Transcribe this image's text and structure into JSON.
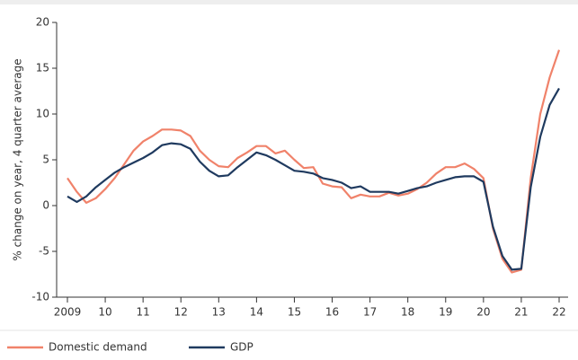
{
  "chart_data": {
    "type": "line",
    "y_label": "% change on year,  4 quarter average",
    "x": [
      2009,
      2009.25,
      2009.5,
      2009.75,
      2010,
      2010.25,
      2010.5,
      2010.75,
      2011,
      2011.25,
      2011.5,
      2011.75,
      2012,
      2012.25,
      2012.5,
      2012.75,
      2013,
      2013.25,
      2013.5,
      2013.75,
      2014,
      2014.25,
      2014.5,
      2014.75,
      2015,
      2015.25,
      2015.5,
      2015.75,
      2016,
      2016.25,
      2016.5,
      2016.75,
      2017,
      2017.25,
      2017.5,
      2017.75,
      2018,
      2018.25,
      2018.5,
      2018.75,
      2019,
      2019.25,
      2019.5,
      2019.75,
      2020,
      2020.25,
      2020.5,
      2020.75,
      2021,
      2021.25,
      2021.5,
      2021.75,
      2022
    ],
    "series": [
      {
        "name": "Domestic demand",
        "color": "#f0826a",
        "values": [
          3,
          1.5,
          0.3,
          0.8,
          1.8,
          3,
          4.5,
          6,
          7,
          7.6,
          8.3,
          8.3,
          8.2,
          7.6,
          6,
          5,
          4.3,
          4.2,
          5.2,
          5.8,
          6.5,
          6.5,
          5.7,
          6,
          5,
          4.1,
          4.2,
          2.4,
          2.1,
          2,
          0.8,
          1.2,
          1,
          1,
          1.4,
          1.1,
          1.3,
          1.8,
          2.5,
          3.5,
          4.2,
          4.2,
          4.6,
          4,
          3,
          -2.5,
          -5.8,
          -7.3,
          -7,
          3,
          10,
          14,
          17
        ]
      },
      {
        "name": "GDP",
        "color": "#1f3a5f",
        "values": [
          1,
          0.4,
          1,
          2,
          2.8,
          3.6,
          4.2,
          4.7,
          5.2,
          5.8,
          6.6,
          6.8,
          6.7,
          6.2,
          4.8,
          3.8,
          3.2,
          3.3,
          4.2,
          5,
          5.8,
          5.5,
          5,
          4.4,
          3.8,
          3.7,
          3.5,
          3,
          2.8,
          2.5,
          1.9,
          2.1,
          1.5,
          1.5,
          1.5,
          1.3,
          1.6,
          1.9,
          2.1,
          2.5,
          2.8,
          3.1,
          3.2,
          3.2,
          2.6,
          -2.3,
          -5.5,
          -7,
          -6.9,
          2,
          7.5,
          11,
          12.8
        ]
      }
    ],
    "xlim": [
      2009,
      2022
    ],
    "xticks": [
      2009,
      {
        "value": 2010,
        "label": "10"
      },
      {
        "value": 2011,
        "label": "11"
      },
      {
        "value": 2012,
        "label": "12"
      },
      {
        "value": 2013,
        "label": "13"
      },
      {
        "value": 2014,
        "label": "14"
      },
      {
        "value": 2015,
        "label": "15"
      },
      {
        "value": 2016,
        "label": "16"
      },
      {
        "value": 2017,
        "label": "17"
      },
      {
        "value": 2018,
        "label": "18"
      },
      {
        "value": 2019,
        "label": "19"
      },
      {
        "value": 2020,
        "label": "20"
      },
      {
        "value": 2021,
        "label": "21"
      },
      {
        "value": 2022,
        "label": "22"
      }
    ],
    "ylim": [
      -10,
      20
    ],
    "yticks": [
      -10,
      -5,
      0,
      5,
      10,
      15,
      20
    ],
    "legend": "bottom-left"
  }
}
